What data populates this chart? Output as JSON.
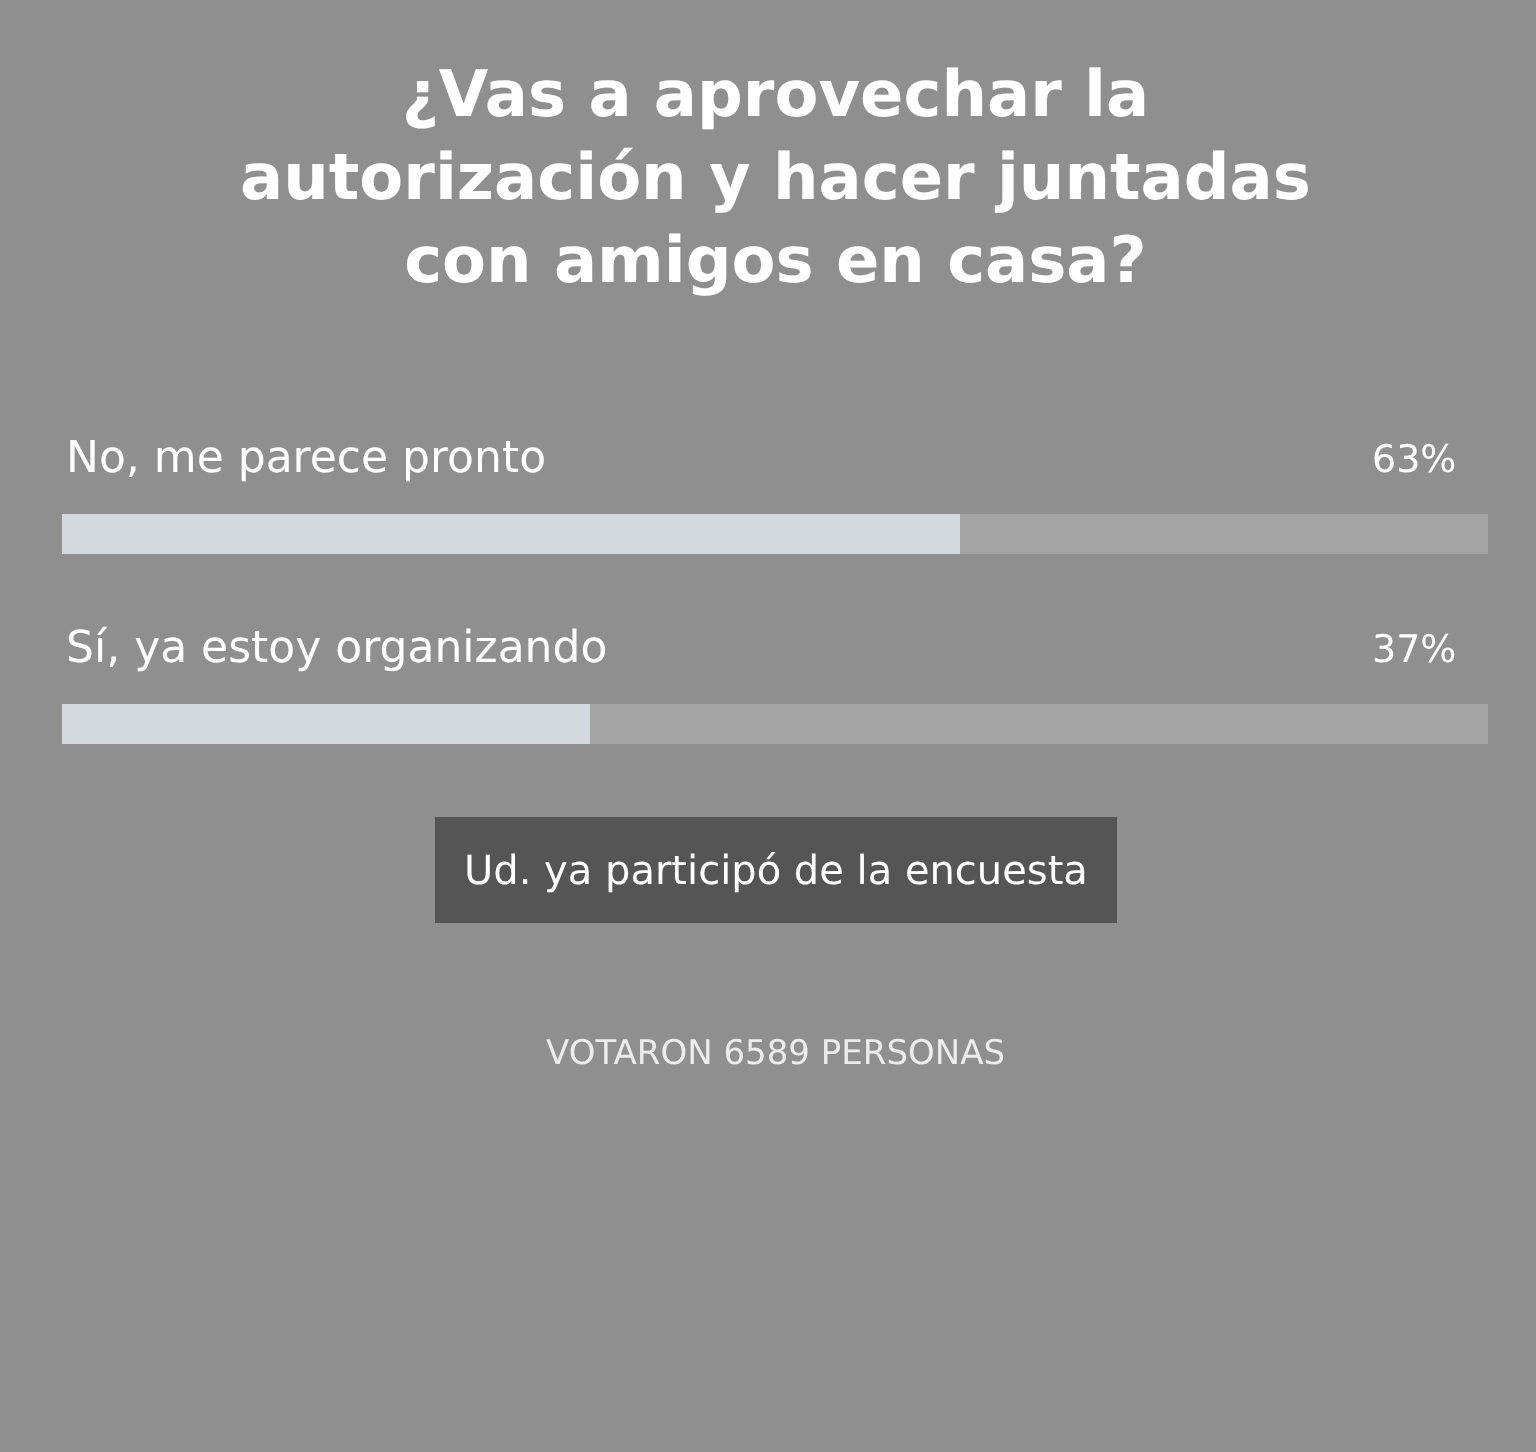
{
  "chart_data": {
    "type": "bar",
    "orientation": "horizontal",
    "title": "¿Vas a aprovechar la autorización y hacer juntadas con amigos en casa?",
    "categories": [
      "No, me parece pronto",
      "Sí, ya estoy organizando"
    ],
    "values": [
      63,
      37
    ],
    "value_labels": [
      "63%",
      "37%"
    ],
    "color": "#d3dadf",
    "xlim": [
      0,
      100
    ],
    "tick_labels": false,
    "grid": false,
    "legend": false,
    "annotations": [
      "Ud. ya participó de la encuesta",
      "VOTARON 6589 PERSONAS"
    ]
  }
}
